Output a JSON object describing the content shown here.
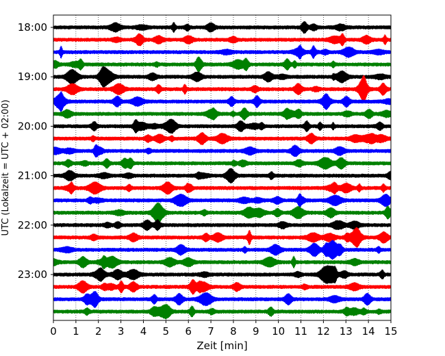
{
  "chart_data": {
    "type": "line",
    "title": "",
    "xlabel": "Zeit  [min]",
    "ylabel": "UTC (Lokalzeit = UTC + 02:00)",
    "xlim": [
      0,
      15
    ],
    "x_ticks": [
      0,
      1,
      2,
      3,
      4,
      5,
      6,
      7,
      8,
      9,
      10,
      11,
      12,
      13,
      14,
      15
    ],
    "y_tick_labels": [
      "18:00",
      "19:00",
      "20:00",
      "21:00",
      "22:00",
      "23:00"
    ],
    "grid": "vertical dotted",
    "line_colors": [
      "#000000",
      "#ff0000",
      "#0000ff",
      "#008000"
    ],
    "series": [
      {
        "start": "18:00",
        "color": "#000000"
      },
      {
        "start": "18:15",
        "color": "#ff0000"
      },
      {
        "start": "18:30",
        "color": "#0000ff"
      },
      {
        "start": "18:45",
        "color": "#008000"
      },
      {
        "start": "19:00",
        "color": "#000000"
      },
      {
        "start": "19:15",
        "color": "#ff0000"
      },
      {
        "start": "19:30",
        "color": "#0000ff"
      },
      {
        "start": "19:45",
        "color": "#008000"
      },
      {
        "start": "20:00",
        "color": "#000000"
      },
      {
        "start": "20:15",
        "color": "#ff0000"
      },
      {
        "start": "20:30",
        "color": "#0000ff"
      },
      {
        "start": "20:45",
        "color": "#008000"
      },
      {
        "start": "21:00",
        "color": "#000000"
      },
      {
        "start": "21:15",
        "color": "#ff0000"
      },
      {
        "start": "21:30",
        "color": "#0000ff"
      },
      {
        "start": "21:45",
        "color": "#008000"
      },
      {
        "start": "22:00",
        "color": "#000000"
      },
      {
        "start": "22:15",
        "color": "#ff0000"
      },
      {
        "start": "22:30",
        "color": "#0000ff"
      },
      {
        "start": "22:45",
        "color": "#008000"
      },
      {
        "start": "23:00",
        "color": "#000000"
      },
      {
        "start": "23:15",
        "color": "#ff0000"
      },
      {
        "start": "23:30",
        "color": "#0000ff"
      },
      {
        "start": "23:45",
        "color": "#008000"
      }
    ]
  }
}
